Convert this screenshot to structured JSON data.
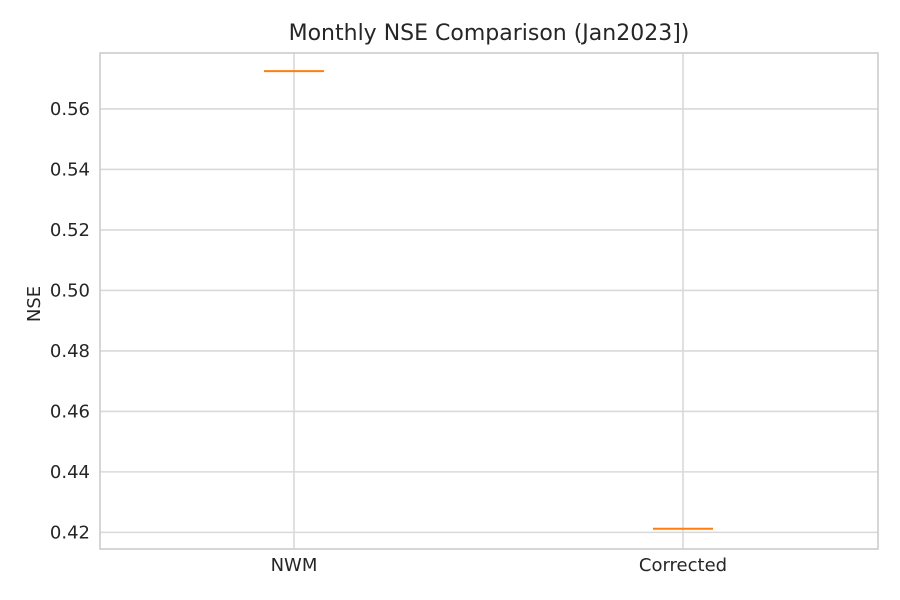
{
  "chart_data": {
    "type": "box",
    "title": "Monthly NSE Comparison (Jan2023])",
    "xlabel": "",
    "ylabel": "NSE",
    "categories": [
      "NWM",
      "Corrected"
    ],
    "values": [
      0.5725,
      0.4212
    ],
    "ylim": [
      0.4145,
      0.5785
    ],
    "yticks": [
      0.42,
      0.44,
      0.46,
      0.48,
      0.5,
      0.52,
      0.54,
      0.56
    ],
    "ytick_labels": [
      "0.42",
      "0.44",
      "0.46",
      "0.48",
      "0.50",
      "0.52",
      "0.54",
      "0.56"
    ],
    "grid": true,
    "median_color": "#ff7f0e",
    "box_color": "#000000",
    "grid_color": "#d9d9d9",
    "frame_color": "#cccccc"
  }
}
